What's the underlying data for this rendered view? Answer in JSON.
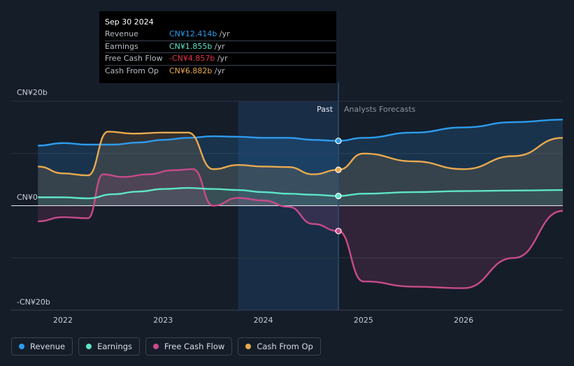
{
  "tooltip": {
    "date": "Sep 30 2024",
    "rows": [
      {
        "label": "Revenue",
        "value": "CN¥12.414b",
        "unit": " /yr",
        "color": "#2d9ced"
      },
      {
        "label": "Earnings",
        "value": "CN¥1.855b",
        "unit": " /yr",
        "color": "#5ee4c8"
      },
      {
        "label": "Free Cash Flow",
        "value": "-CN¥4.857b",
        "unit": " /yr",
        "color": "#e4344b"
      },
      {
        "label": "Cash From Op",
        "value": "CN¥6.882b",
        "unit": " /yr",
        "color": "#e9a94f"
      }
    ]
  },
  "legend": [
    {
      "label": "Revenue",
      "color": "#2d9ced"
    },
    {
      "label": "Earnings",
      "color": "#5ee4c8"
    },
    {
      "label": "Free Cash Flow",
      "color": "#c84b8a"
    },
    {
      "label": "Cash From Op",
      "color": "#e9a94f"
    }
  ],
  "chart_data": {
    "type": "line",
    "y_unit": "CN¥ billions",
    "ylim": [
      -20,
      20
    ],
    "y_tick_labels": [
      {
        "value": 20,
        "label": "CN¥20b"
      },
      {
        "value": 0,
        "label": "CN¥0"
      },
      {
        "value": -20,
        "label": "-CN¥20b"
      }
    ],
    "xlim": [
      2021.7,
      2026.99
    ],
    "x_tick_labels": [
      {
        "value": 2022,
        "label": "2022"
      },
      {
        "value": 2023,
        "label": "2023"
      },
      {
        "value": 2024,
        "label": "2024"
      },
      {
        "value": 2025,
        "label": "2025"
      },
      {
        "value": 2026,
        "label": "2026"
      }
    ],
    "divider_x": 2024.75,
    "past_label": "Past",
    "forecast_label": "Analysts Forecasts",
    "highlight_range": [
      2023.75,
      2024.75
    ],
    "series": [
      {
        "name": "Revenue",
        "color": "#2d9ced",
        "points": [
          [
            2021.75,
            11.5
          ],
          [
            2022.0,
            12.0
          ],
          [
            2022.25,
            11.7
          ],
          [
            2022.5,
            11.7
          ],
          [
            2022.75,
            12.1
          ],
          [
            2023.0,
            12.6
          ],
          [
            2023.25,
            13.0
          ],
          [
            2023.5,
            13.3
          ],
          [
            2023.75,
            13.2
          ],
          [
            2024.0,
            13.0
          ],
          [
            2024.25,
            13.0
          ],
          [
            2024.5,
            12.6
          ],
          [
            2024.75,
            12.414
          ],
          [
            2025.0,
            13.0
          ],
          [
            2025.5,
            14.0
          ],
          [
            2026.0,
            15.0
          ],
          [
            2026.5,
            16.0
          ],
          [
            2026.99,
            16.5
          ]
        ]
      },
      {
        "name": "Earnings",
        "color": "#5ee4c8",
        "points": [
          [
            2021.75,
            1.6
          ],
          [
            2022.0,
            1.6
          ],
          [
            2022.25,
            1.4
          ],
          [
            2022.5,
            2.2
          ],
          [
            2022.75,
            2.7
          ],
          [
            2023.0,
            3.2
          ],
          [
            2023.25,
            3.4
          ],
          [
            2023.5,
            3.2
          ],
          [
            2023.75,
            3.0
          ],
          [
            2024.0,
            2.6
          ],
          [
            2024.25,
            2.3
          ],
          [
            2024.5,
            2.1
          ],
          [
            2024.75,
            1.855
          ],
          [
            2025.0,
            2.3
          ],
          [
            2025.5,
            2.6
          ],
          [
            2026.0,
            2.8
          ],
          [
            2026.5,
            2.9
          ],
          [
            2026.99,
            3.0
          ]
        ]
      },
      {
        "name": "Free Cash Flow",
        "color": "#c84b8a",
        "points": [
          [
            2021.75,
            -3.0
          ],
          [
            2022.0,
            -2.2
          ],
          [
            2022.25,
            -2.4
          ],
          [
            2022.4,
            6.0
          ],
          [
            2022.6,
            5.5
          ],
          [
            2022.85,
            6.0
          ],
          [
            2023.1,
            6.8
          ],
          [
            2023.3,
            7.0
          ],
          [
            2023.5,
            0.0
          ],
          [
            2023.75,
            1.5
          ],
          [
            2024.0,
            1.0
          ],
          [
            2024.25,
            -0.2
          ],
          [
            2024.5,
            -3.5
          ],
          [
            2024.75,
            -4.857
          ],
          [
            2025.0,
            -14.5
          ],
          [
            2025.5,
            -15.5
          ],
          [
            2026.0,
            -15.8
          ],
          [
            2026.5,
            -10.0
          ],
          [
            2026.99,
            -1.0
          ]
        ]
      },
      {
        "name": "Cash From Op",
        "color": "#e9a94f",
        "points": [
          [
            2021.75,
            7.5
          ],
          [
            2022.0,
            6.2
          ],
          [
            2022.25,
            5.8
          ],
          [
            2022.45,
            14.2
          ],
          [
            2022.7,
            13.8
          ],
          [
            2023.0,
            14.0
          ],
          [
            2023.25,
            14.0
          ],
          [
            2023.5,
            7.0
          ],
          [
            2023.75,
            7.8
          ],
          [
            2024.0,
            7.5
          ],
          [
            2024.25,
            7.4
          ],
          [
            2024.5,
            6.0
          ],
          [
            2024.75,
            6.882
          ],
          [
            2025.0,
            10.0
          ],
          [
            2025.5,
            8.5
          ],
          [
            2026.0,
            7.0
          ],
          [
            2026.5,
            9.5
          ],
          [
            2026.99,
            13.0
          ]
        ]
      }
    ]
  }
}
